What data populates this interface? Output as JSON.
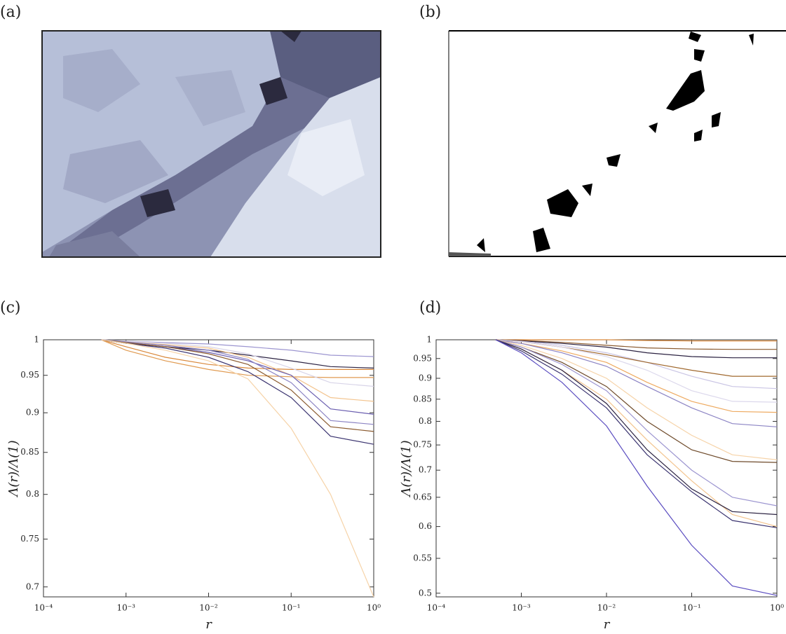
{
  "images": [
    {
      "label": "(a)"
    },
    {
      "label": "(b)"
    }
  ],
  "chart_data": [
    {
      "type": "line",
      "title": "(c)",
      "xlabel": "r",
      "ylabel": "Λ(r)/Λ(1)",
      "xscale": "log",
      "yscale": "log",
      "x": [
        0.0005,
        0.001,
        0.003,
        0.01,
        0.03,
        0.1,
        0.3,
        1
      ],
      "xlim": [
        0.0001,
        1
      ],
      "xticks": [
        {
          "value": 0.0001,
          "label": "10⁻⁴"
        },
        {
          "value": 0.001,
          "label": "10⁻³"
        },
        {
          "value": 0.01,
          "label": "10⁻²"
        },
        {
          "value": 0.1,
          "label": "10⁻¹"
        },
        {
          "value": 1,
          "label": "10⁰"
        }
      ],
      "ylim": [
        0.69,
        1
      ],
      "yticks": [
        0.7,
        0.75,
        0.8,
        0.85,
        0.9,
        0.95,
        1
      ],
      "series": [
        {
          "color": "#2a2140",
          "values": [
            1,
            0.995,
            0.99,
            0.985,
            0.978,
            0.97,
            0.962,
            0.96
          ]
        },
        {
          "color": "#d9883a",
          "values": [
            1,
            0.99,
            0.975,
            0.965,
            0.96,
            0.958,
            0.958,
            0.958
          ]
        },
        {
          "color": "#9c95d0",
          "values": [
            1,
            0.998,
            0.996,
            0.994,
            0.99,
            0.985,
            0.978,
            0.976
          ]
        },
        {
          "color": "#e09a50",
          "values": [
            1,
            0.985,
            0.97,
            0.958,
            0.95,
            0.948,
            0.947,
            0.947
          ]
        },
        {
          "color": "#d8d4e8",
          "values": [
            1,
            0.998,
            0.995,
            0.99,
            0.98,
            0.96,
            0.94,
            0.935
          ]
        },
        {
          "color": "#f3c48e",
          "values": [
            1,
            0.997,
            0.993,
            0.988,
            0.975,
            0.95,
            0.92,
            0.915
          ]
        },
        {
          "color": "#6b5fb0",
          "values": [
            1,
            0.996,
            0.99,
            0.982,
            0.97,
            0.95,
            0.905,
            0.898
          ]
        },
        {
          "color": "#8c84c4",
          "values": [
            1,
            0.997,
            0.992,
            0.985,
            0.972,
            0.94,
            0.89,
            0.885
          ]
        },
        {
          "color": "#8a5a2e",
          "values": [
            1,
            0.996,
            0.99,
            0.98,
            0.965,
            0.93,
            0.882,
            0.876
          ]
        },
        {
          "color": "#3b3470",
          "values": [
            1,
            0.995,
            0.988,
            0.975,
            0.955,
            0.92,
            0.87,
            0.86
          ]
        },
        {
          "color": "#f6d3a8",
          "values": [
            1,
            0.995,
            0.985,
            0.97,
            0.945,
            0.88,
            0.8,
            0.69
          ]
        }
      ]
    },
    {
      "type": "line",
      "title": "(d)",
      "xlabel": "r",
      "ylabel": "Λ(r)/Λ(1)",
      "xscale": "log",
      "yscale": "log",
      "x": [
        0.0005,
        0.001,
        0.003,
        0.01,
        0.03,
        0.1,
        0.3,
        1
      ],
      "xlim": [
        0.0001,
        1
      ],
      "xticks": [
        {
          "value": 0.0001,
          "label": "10⁻⁴"
        },
        {
          "value": 0.001,
          "label": "10⁻³"
        },
        {
          "value": 0.01,
          "label": "10⁻²"
        },
        {
          "value": 0.1,
          "label": "10⁻¹"
        },
        {
          "value": 1,
          "label": "10⁰"
        }
      ],
      "ylim": [
        0.495,
        1
      ],
      "yticks": [
        0.5,
        0.55,
        0.6,
        0.65,
        0.7,
        0.75,
        0.8,
        0.85,
        0.9,
        0.95,
        1
      ],
      "series": [
        {
          "color": "#d9883a",
          "values": [
            1,
            1,
            1,
            1,
            0.998,
            0.997,
            0.997,
            0.997
          ]
        },
        {
          "color": "#8a5a2e",
          "values": [
            1,
            0.998,
            0.993,
            0.985,
            0.978,
            0.975,
            0.974,
            0.974
          ]
        },
        {
          "color": "#2a2140",
          "values": [
            1,
            0.997,
            0.99,
            0.98,
            0.965,
            0.955,
            0.952,
            0.952
          ]
        },
        {
          "color": "#c9c4e4",
          "values": [
            1,
            0.996,
            0.985,
            0.965,
            0.94,
            0.905,
            0.88,
            0.875
          ]
        },
        {
          "color": "#a0682e",
          "values": [
            1,
            0.995,
            0.98,
            0.96,
            0.94,
            0.92,
            0.905,
            0.905
          ]
        },
        {
          "color": "#dcd8ec",
          "values": [
            1,
            0.995,
            0.98,
            0.955,
            0.92,
            0.87,
            0.845,
            0.843
          ]
        },
        {
          "color": "#eeaa60",
          "values": [
            1,
            0.99,
            0.97,
            0.94,
            0.89,
            0.845,
            0.822,
            0.82
          ]
        },
        {
          "color": "#8c84c4",
          "values": [
            1,
            0.99,
            0.965,
            0.93,
            0.88,
            0.83,
            0.795,
            0.788
          ]
        },
        {
          "color": "#f6d3a8",
          "values": [
            1,
            0.985,
            0.95,
            0.9,
            0.83,
            0.77,
            0.73,
            0.72
          ]
        },
        {
          "color": "#6e4a2a",
          "values": [
            1,
            0.98,
            0.94,
            0.88,
            0.8,
            0.74,
            0.717,
            0.715
          ]
        },
        {
          "color": "#9c95d0",
          "values": [
            1,
            0.98,
            0.935,
            0.87,
            0.78,
            0.7,
            0.65,
            0.635
          ]
        },
        {
          "color": "#f3c48e",
          "values": [
            1,
            0.975,
            0.92,
            0.85,
            0.76,
            0.68,
            0.62,
            0.6
          ]
        },
        {
          "color": "#2a2140",
          "values": [
            1,
            0.975,
            0.92,
            0.84,
            0.74,
            0.665,
            0.625,
            0.62
          ]
        },
        {
          "color": "#3b3470",
          "values": [
            1,
            0.97,
            0.91,
            0.83,
            0.73,
            0.66,
            0.61,
            0.598
          ]
        },
        {
          "color": "#5a4cc0",
          "values": [
            1,
            0.965,
            0.89,
            0.79,
            0.67,
            0.57,
            0.51,
            0.497
          ]
        }
      ]
    }
  ]
}
